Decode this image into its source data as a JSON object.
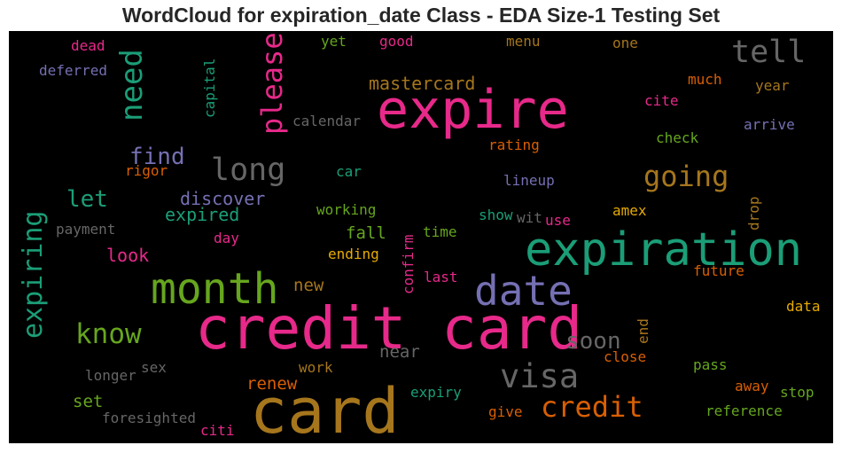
{
  "title": "WordCloud for expiration_date Class - EDA Size-1 Testing Set",
  "chart_data": {
    "type": "wordcloud",
    "background": "#000000",
    "colormap": [
      "#1b9e77",
      "#d95f02",
      "#7570b3",
      "#e7298a",
      "#66a61e",
      "#e6ab02",
      "#a6761d",
      "#666666"
    ],
    "words": [
      {
        "text": "credit card",
        "color": "#e7298a"
      },
      {
        "text": "card",
        "color": "#a6761d"
      },
      {
        "text": "expiration",
        "color": "#1b9e77"
      },
      {
        "text": "expire",
        "color": "#e7298a"
      },
      {
        "text": "month",
        "color": "#66a61e"
      },
      {
        "text": "date",
        "color": "#7570b3"
      },
      {
        "text": "visa",
        "color": "#666666"
      },
      {
        "text": "credit",
        "color": "#d95f02"
      },
      {
        "text": "long",
        "color": "#666666"
      },
      {
        "text": "tell",
        "color": "#666666"
      },
      {
        "text": "need",
        "color": "#1b9e77"
      },
      {
        "text": "please",
        "color": "#e7298a"
      },
      {
        "text": "going",
        "color": "#a6761d"
      },
      {
        "text": "expiring",
        "color": "#1b9e77"
      },
      {
        "text": "know",
        "color": "#66a61e"
      },
      {
        "text": "soon",
        "color": "#666666"
      },
      {
        "text": "find",
        "color": "#7570b3"
      },
      {
        "text": "let",
        "color": "#1b9e77"
      },
      {
        "text": "mastercard",
        "color": "#a6761d"
      },
      {
        "text": "discover",
        "color": "#7570b3"
      },
      {
        "text": "expired",
        "color": "#1b9e77"
      },
      {
        "text": "look",
        "color": "#e7298a"
      },
      {
        "text": "fall",
        "color": "#66a61e"
      },
      {
        "text": "new",
        "color": "#a6761d"
      },
      {
        "text": "renew",
        "color": "#d95f02"
      },
      {
        "text": "near",
        "color": "#666666"
      },
      {
        "text": "set",
        "color": "#66a61e"
      },
      {
        "text": "dead",
        "color": "#e7298a"
      },
      {
        "text": "deferred",
        "color": "#7570b3"
      },
      {
        "text": "capital",
        "color": "#1b9e77"
      },
      {
        "text": "yet",
        "color": "#66a61e"
      },
      {
        "text": "good",
        "color": "#e7298a"
      },
      {
        "text": "menu",
        "color": "#a6761d"
      },
      {
        "text": "one",
        "color": "#a6761d"
      },
      {
        "text": "calendar",
        "color": "#666666"
      },
      {
        "text": "much",
        "color": "#d95f02"
      },
      {
        "text": "year",
        "color": "#a6761d"
      },
      {
        "text": "cite",
        "color": "#e7298a"
      },
      {
        "text": "arrive",
        "color": "#7570b3"
      },
      {
        "text": "check",
        "color": "#66a61e"
      },
      {
        "text": "rating",
        "color": "#d95f02"
      },
      {
        "text": "rigor",
        "color": "#d95f02"
      },
      {
        "text": "car",
        "color": "#1b9e77"
      },
      {
        "text": "lineup",
        "color": "#7570b3"
      },
      {
        "text": "working",
        "color": "#66a61e"
      },
      {
        "text": "show",
        "color": "#1b9e77"
      },
      {
        "text": "wit",
        "color": "#666666"
      },
      {
        "text": "use",
        "color": "#e7298a"
      },
      {
        "text": "amex",
        "color": "#e6ab02"
      },
      {
        "text": "drop",
        "color": "#a6761d"
      },
      {
        "text": "payment",
        "color": "#666666"
      },
      {
        "text": "day",
        "color": "#e7298a"
      },
      {
        "text": "confirm",
        "color": "#e7298a"
      },
      {
        "text": "time",
        "color": "#66a61e"
      },
      {
        "text": "ending",
        "color": "#e6ab02"
      },
      {
        "text": "last",
        "color": "#e7298a"
      },
      {
        "text": "future",
        "color": "#d95f02"
      },
      {
        "text": "data",
        "color": "#e6ab02"
      },
      {
        "text": "end",
        "color": "#a6761d"
      },
      {
        "text": "close",
        "color": "#d95f02"
      },
      {
        "text": "pass",
        "color": "#66a61e"
      },
      {
        "text": "away",
        "color": "#d95f02"
      },
      {
        "text": "stop",
        "color": "#66a61e"
      },
      {
        "text": "longer",
        "color": "#666666"
      },
      {
        "text": "sex",
        "color": "#666666"
      },
      {
        "text": "work",
        "color": "#a6761d"
      },
      {
        "text": "expiry",
        "color": "#1b9e77"
      },
      {
        "text": "give",
        "color": "#d95f02"
      },
      {
        "text": "reference",
        "color": "#66a61e"
      },
      {
        "text": "foresighted",
        "color": "#666666"
      },
      {
        "text": "citi",
        "color": "#e7298a"
      }
    ]
  }
}
